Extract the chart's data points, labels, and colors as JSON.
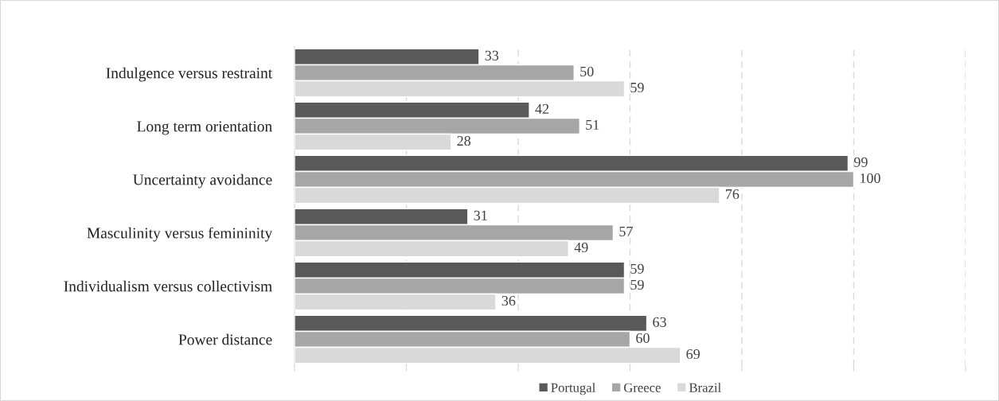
{
  "chart_data": {
    "type": "bar",
    "orientation": "horizontal",
    "categories": [
      "Indulgence versus restraint",
      "Long term orientation",
      "Uncertainty avoidance",
      "Masculinity versus femininity",
      "Individualism versus collectivism",
      "Power distance"
    ],
    "series": [
      {
        "name": "Portugal",
        "color": "#595959",
        "values": [
          33,
          42,
          99,
          31,
          59,
          63
        ]
      },
      {
        "name": "Greece",
        "color": "#a6a6a6",
        "values": [
          50,
          51,
          100,
          57,
          59,
          60
        ]
      },
      {
        "name": "Brazil",
        "color": "#d9d9d9",
        "values": [
          59,
          28,
          76,
          49,
          36,
          69
        ]
      }
    ],
    "xlim": [
      0,
      120
    ],
    "xticks": [
      {
        "value": 0,
        "label": null
      },
      {
        "value": 20,
        "label": null
      },
      {
        "value": 40,
        "label": null
      },
      {
        "value": 60,
        "label": null
      },
      {
        "value": 80,
        "label": null
      },
      {
        "value": 100,
        "label": null
      },
      {
        "value": 120,
        "label": null
      }
    ],
    "grid": "x",
    "legend": "bottom",
    "data_labels": true
  }
}
